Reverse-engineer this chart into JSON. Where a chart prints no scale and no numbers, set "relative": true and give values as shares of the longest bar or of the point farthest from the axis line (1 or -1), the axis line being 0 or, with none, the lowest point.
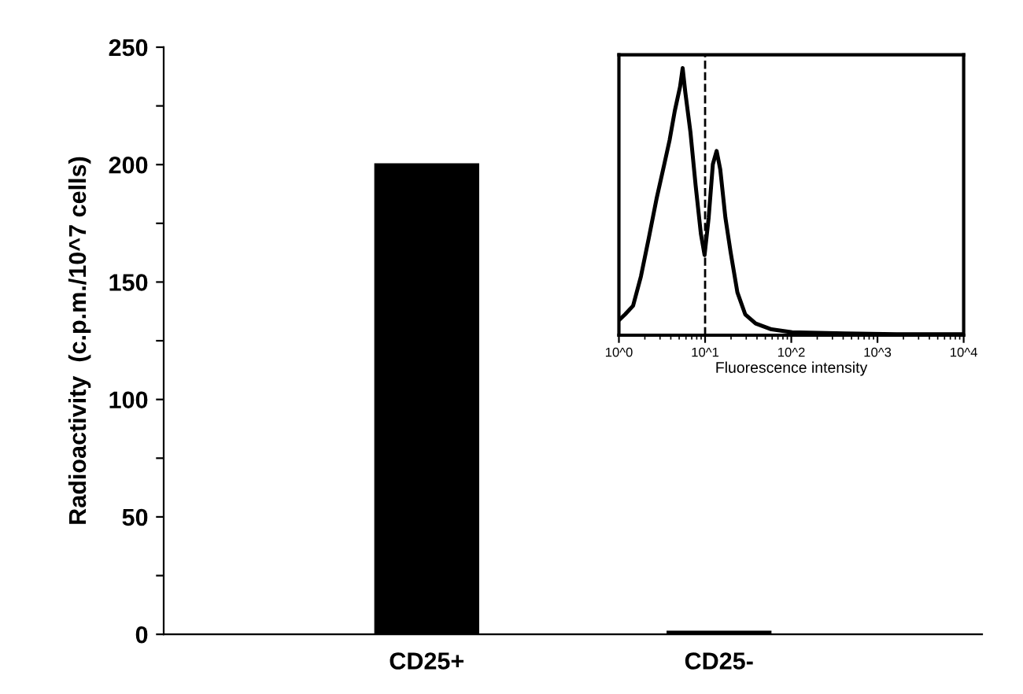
{
  "chart_data": [
    {
      "type": "bar",
      "ylabel": "Radioactivity  (c.p.m./10^7 cells)",
      "categories": [
        "CD25+",
        "CD25-"
      ],
      "values": [
        200,
        1
      ],
      "colors": [
        "#000000",
        "#ffffff"
      ],
      "ylim": [
        0,
        250
      ],
      "yticks": [
        0,
        {
          "value": 25,
          "label": null
        },
        50,
        {
          "value": 75,
          "label": null
        },
        100,
        {
          "value": 125,
          "label": null
        },
        150,
        {
          "value": 175,
          "label": null
        },
        200,
        {
          "value": 225,
          "label": null
        },
        250
      ],
      "grid": false
    },
    {
      "type": "line",
      "xlabel": "Fluorescence intensity",
      "relative": true,
      "log": "x",
      "tick_labels": "x",
      "xlim": [
        1,
        10000
      ],
      "xticks": [
        {
          "value": 1,
          "label": "10^0"
        },
        {
          "value": 10,
          "label": "10^1"
        },
        {
          "value": 100,
          "label": "10^2"
        },
        {
          "value": 1000,
          "label": "10^3"
        },
        {
          "value": 10000,
          "label": "10^4"
        }
      ],
      "ref_lines": [
        {
          "axis": "x",
          "value": 10,
          "label": null,
          "color": "#000000",
          "line_style": "dashed"
        }
      ],
      "grid": false,
      "marker": "none",
      "line_style": "solid",
      "series": [
        {
          "color": "#000000",
          "x": [
            1.0,
            1.18,
            1.46,
            1.8,
            2.21,
            2.73,
            3.36,
            3.87,
            4.45,
            5.12,
            5.49,
            5.89,
            6.76,
            7.77,
            8.93,
            9.86,
            11.0,
            12.3,
            13.6,
            15.0,
            17.2,
            19.8,
            23.7,
            29.2,
            38.6,
            58.9,
            102,
            417,
            1670,
            10000
          ],
          "values": [
            0.056,
            0.078,
            0.11,
            0.22,
            0.36,
            0.51,
            0.64,
            0.73,
            0.84,
            0.93,
            1,
            0.91,
            0.76,
            0.56,
            0.38,
            0.3,
            0.44,
            0.64,
            0.69,
            0.62,
            0.44,
            0.31,
            0.16,
            0.078,
            0.044,
            0.022,
            0.011,
            0.007,
            0.004,
            0.004
          ]
        }
      ]
    }
  ]
}
